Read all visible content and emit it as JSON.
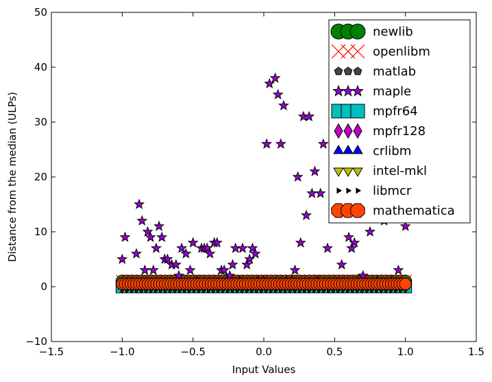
{
  "chart_data": {
    "type": "scatter",
    "title": "",
    "xlabel": "Input Values",
    "ylabel": "Distance from the median (ULPs)",
    "xlim": [
      -1.5,
      1.5
    ],
    "ylim": [
      -10,
      50
    ],
    "xticks": [
      -1.5,
      -1.0,
      -0.5,
      0.0,
      0.5,
      1.0,
      1.5
    ],
    "xtick_labels": [
      "−1.5",
      "−1.0",
      "−0.5",
      "0.0",
      "0.5",
      "1.0",
      "1.5"
    ],
    "yticks": [
      -10,
      0,
      10,
      20,
      30,
      40,
      50
    ],
    "ytick_labels": [
      "−10",
      "0",
      "10",
      "20",
      "30",
      "40",
      "50"
    ],
    "grid": false,
    "legend_position": "top-right",
    "series": [
      {
        "name": "newlib",
        "marker": "circle",
        "color": "#008000",
        "x_range": [
          -1.0,
          1.0
        ],
        "y": 1,
        "count": 60
      },
      {
        "name": "openlibm",
        "marker": "x",
        "color": "#ff0000",
        "x_range": [
          -1.0,
          1.0
        ],
        "y": 1,
        "count": 60
      },
      {
        "name": "matlab",
        "marker": "pentagon",
        "color": "#444444",
        "x_range": [
          -1.0,
          1.0
        ],
        "y": 0,
        "count": 60
      },
      {
        "name": "maple",
        "marker": "star",
        "color": "#9400d3",
        "x": [
          -1.0,
          -0.98,
          -0.95,
          -0.9,
          -0.88,
          -0.86,
          -0.84,
          -0.82,
          -0.8,
          -0.78,
          -0.76,
          -0.74,
          -0.72,
          -0.7,
          -0.68,
          -0.65,
          -0.62,
          -0.6,
          -0.58,
          -0.55,
          -0.52,
          -0.5,
          -0.47,
          -0.44,
          -0.42,
          -0.4,
          -0.38,
          -0.35,
          -0.33,
          -0.3,
          -0.28,
          -0.26,
          -0.24,
          -0.22,
          -0.2,
          -0.17,
          -0.15,
          -0.12,
          -0.1,
          -0.08,
          -0.06,
          -0.04,
          -0.02,
          0.0,
          0.02,
          0.04,
          0.06,
          0.08,
          0.1,
          0.12,
          0.14,
          0.16,
          0.2,
          0.22,
          0.24,
          0.26,
          0.28,
          0.3,
          0.32,
          0.34,
          0.36,
          0.38,
          0.4,
          0.42,
          0.45,
          0.48,
          0.5,
          0.55,
          0.58,
          0.6,
          0.62,
          0.64,
          0.66,
          0.7,
          0.75,
          0.8,
          0.85,
          0.9,
          0.95,
          1.0
        ],
        "y": [
          5,
          9,
          0,
          6,
          15,
          12,
          3,
          10,
          9,
          3,
          7,
          11,
          9,
          5,
          5,
          4,
          4,
          2,
          7,
          6,
          3,
          8,
          1,
          7,
          7,
          7,
          6,
          8,
          8,
          3,
          3,
          1,
          2,
          4,
          7,
          1,
          7,
          4,
          5,
          7,
          6,
          1,
          0,
          1,
          26,
          37,
          0,
          38,
          35,
          26,
          33,
          1,
          1,
          3,
          20,
          8,
          31,
          13,
          31,
          17,
          21,
          1,
          17,
          26,
          7,
          0,
          28,
          4,
          15,
          9,
          7,
          8,
          1,
          2,
          10,
          1,
          12,
          1,
          3,
          11
        ]
      },
      {
        "name": "mpfr64",
        "marker": "square",
        "color": "#00bfbf",
        "x_range": [
          -1.0,
          1.0
        ],
        "y": 0,
        "count": 60
      },
      {
        "name": "mpfr128",
        "marker": "diamond",
        "color": "#bf00bf",
        "x_range": [
          -1.0,
          1.0
        ],
        "y": 0,
        "count": 60
      },
      {
        "name": "crlibm",
        "marker": "triangle-up",
        "color": "#0000ff",
        "x_range": [
          -1.0,
          1.0
        ],
        "y": 0,
        "count": 60
      },
      {
        "name": "intel-mkl",
        "marker": "triangle-down",
        "color": "#bfbf00",
        "x_range": [
          -1.0,
          1.0
        ],
        "y": 0,
        "count": 60
      },
      {
        "name": "libmcr",
        "marker": "triangle-right",
        "color": "#000000",
        "x_range": [
          -1.0,
          1.0
        ],
        "y": 0,
        "count": 60
      },
      {
        "name": "mathematica",
        "marker": "octagon",
        "color": "#ff4500",
        "x_range": [
          -1.0,
          1.0
        ],
        "y": 0.5,
        "count": 100
      }
    ]
  }
}
